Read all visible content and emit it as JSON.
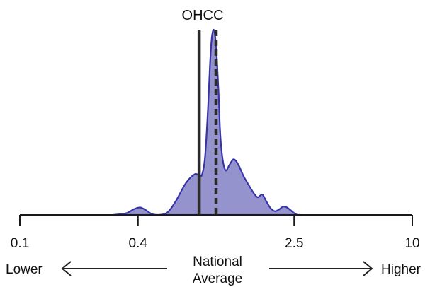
{
  "chart_data": {
    "type": "area",
    "title": "OHCC",
    "x_scale": "log",
    "xlim": [
      0.1,
      10
    ],
    "ticks": [
      {
        "value": 0.1,
        "label": "0.1"
      },
      {
        "value": 0.4,
        "label": "0.4"
      },
      {
        "value": 2.5,
        "label": "2.5"
      },
      {
        "value": 10,
        "label": "10"
      }
    ],
    "density": {
      "x": [
        0.3,
        0.35,
        0.38,
        0.41,
        0.44,
        0.47,
        0.5,
        0.56,
        0.62,
        0.7,
        0.78,
        0.82,
        0.85,
        0.88,
        0.91,
        0.93,
        0.95,
        0.97,
        0.99,
        1.01,
        1.03,
        1.05,
        1.08,
        1.12,
        1.17,
        1.23,
        1.3,
        1.38,
        1.47,
        1.55,
        1.63,
        1.72,
        1.8,
        1.9,
        2.0,
        2.1,
        2.2,
        2.3,
        2.4,
        2.5,
        2.6,
        2.7
      ],
      "y": [
        0.0,
        0.01,
        0.03,
        0.04,
        0.025,
        0.005,
        0.0,
        0.01,
        0.07,
        0.17,
        0.22,
        0.21,
        0.22,
        0.32,
        0.58,
        0.8,
        0.95,
        1.0,
        0.96,
        0.84,
        0.66,
        0.44,
        0.3,
        0.24,
        0.27,
        0.3,
        0.27,
        0.21,
        0.16,
        0.12,
        0.095,
        0.11,
        0.075,
        0.035,
        0.02,
        0.03,
        0.045,
        0.04,
        0.025,
        0.01,
        0.0,
        0.0
      ]
    },
    "reference_lines": [
      {
        "name": "solid",
        "value": 0.82,
        "style": "solid"
      },
      {
        "name": "dashed",
        "value": 1.0,
        "style": "dashed"
      }
    ],
    "fill_color": "#8a87c9",
    "line_color": "#3834a8",
    "annotations": {
      "lower": "Lower",
      "higher": "Higher",
      "center_line1": "National",
      "center_line2": "Average"
    }
  }
}
